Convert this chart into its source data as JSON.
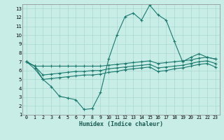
{
  "xlabel": "Humidex (Indice chaleur)",
  "ylabel": "",
  "bg_color": "#c8ece6",
  "grid_color": "#a8d8d0",
  "line_color": "#1a7a6e",
  "xlim": [
    -0.5,
    23.5
  ],
  "ylim": [
    1,
    13.5
  ],
  "xticks": [
    0,
    1,
    2,
    3,
    4,
    5,
    6,
    7,
    8,
    9,
    10,
    11,
    12,
    13,
    14,
    15,
    16,
    17,
    18,
    19,
    20,
    21,
    22,
    23
  ],
  "yticks": [
    1,
    2,
    3,
    4,
    5,
    6,
    7,
    8,
    9,
    10,
    11,
    12,
    13
  ],
  "line1_y": [
    7.0,
    6.2,
    5.0,
    4.2,
    3.1,
    2.9,
    2.7,
    1.6,
    1.7,
    3.5,
    7.3,
    10.0,
    12.1,
    12.5,
    11.7,
    13.4,
    12.3,
    11.7,
    9.3,
    7.0,
    7.5,
    7.9,
    7.5,
    7.3
  ],
  "line2_y": [
    7.0,
    6.5,
    6.5,
    6.5,
    6.5,
    6.5,
    6.5,
    6.5,
    6.5,
    6.5,
    6.6,
    6.7,
    6.8,
    6.9,
    7.0,
    7.1,
    6.8,
    6.9,
    7.0,
    7.1,
    7.2,
    7.4,
    7.5,
    7.3
  ],
  "line3_y": [
    7.0,
    6.5,
    5.5,
    5.6,
    5.7,
    5.8,
    5.9,
    5.9,
    6.0,
    6.0,
    6.2,
    6.3,
    6.4,
    6.5,
    6.6,
    6.7,
    6.3,
    6.4,
    6.5,
    6.6,
    6.8,
    7.0,
    7.1,
    6.8
  ],
  "line4_y": [
    7.0,
    6.5,
    5.0,
    5.1,
    5.2,
    5.3,
    5.4,
    5.5,
    5.5,
    5.6,
    5.8,
    5.9,
    6.1,
    6.2,
    6.3,
    6.4,
    5.9,
    6.0,
    6.2,
    6.3,
    6.5,
    6.7,
    6.8,
    6.4
  ]
}
